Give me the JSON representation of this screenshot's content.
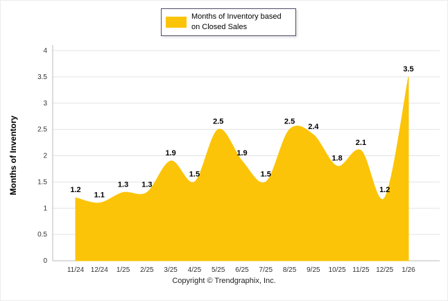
{
  "legend": {
    "label": "Months of Inventory based on Closed Sales"
  },
  "footer": {
    "copyright": "Copyright © Trendgraphix, Inc."
  },
  "chart_data": {
    "type": "area",
    "title": "",
    "categories": [
      "11/24",
      "12/24",
      "1/25",
      "2/25",
      "3/25",
      "4/25",
      "5/25",
      "6/25",
      "7/25",
      "8/25",
      "9/25",
      "10/25",
      "11/25",
      "12/25",
      "1/26"
    ],
    "values": [
      1.2,
      1.1,
      1.3,
      1.3,
      1.9,
      1.5,
      2.5,
      1.9,
      1.5,
      2.5,
      2.4,
      1.8,
      2.1,
      1.2,
      3.5
    ],
    "series_name": "Months of Inventory based on Closed Sales",
    "xlabel": "",
    "ylabel": "Months of Inventory",
    "ylim": [
      0,
      4
    ],
    "ytick_step": 0.5,
    "grid": true,
    "legend_position": "top",
    "fill_color": "#FCC408",
    "grid_color": "#e3e3e3",
    "axis_color": "#b8b8b8"
  }
}
